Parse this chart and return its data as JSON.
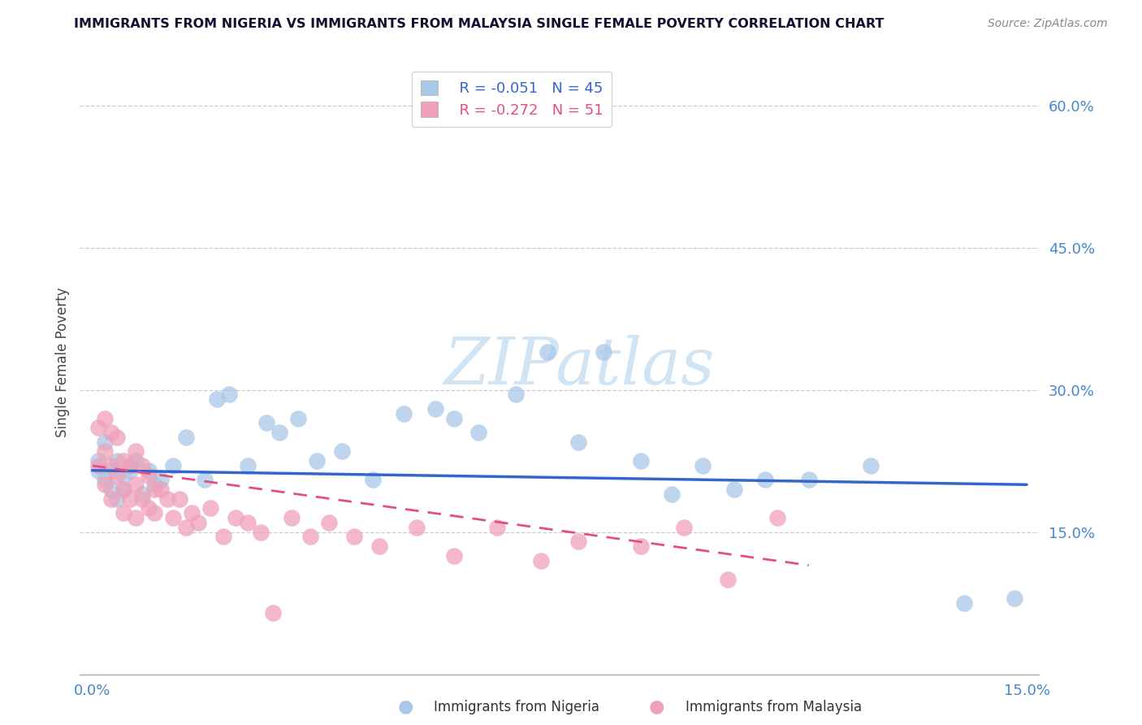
{
  "title": "IMMIGRANTS FROM NIGERIA VS IMMIGRANTS FROM MALAYSIA SINGLE FEMALE POVERTY CORRELATION CHART",
  "source": "Source: ZipAtlas.com",
  "xlabel_nigeria": "Immigrants from Nigeria",
  "xlabel_malaysia": "Immigrants from Malaysia",
  "ylabel": "Single Female Poverty",
  "xlim": [
    -0.002,
    0.152
  ],
  "ylim": [
    0.0,
    0.65
  ],
  "xtick_vals": [
    0.0,
    0.15
  ],
  "xtick_labels": [
    "0.0%",
    "15.0%"
  ],
  "ytick_vals": [
    0.15,
    0.3,
    0.45,
    0.6
  ],
  "ytick_labels": [
    "15.0%",
    "30.0%",
    "45.0%",
    "60.0%"
  ],
  "legend_r_nigeria": "R = -0.051",
  "legend_n_nigeria": "N = 45",
  "legend_r_malaysia": "R = -0.272",
  "legend_n_malaysia": "N = 51",
  "color_nigeria": "#a8c8e8",
  "color_malaysia": "#f0a0b8",
  "line_color_nigeria": "#3366cc",
  "line_color_malaysia": "#e05080",
  "watermark_color": "#d0e4f4",
  "nigeria_x": [
    0.001,
    0.001,
    0.002,
    0.002,
    0.003,
    0.003,
    0.004,
    0.004,
    0.005,
    0.005,
    0.006,
    0.007,
    0.008,
    0.009,
    0.01,
    0.011,
    0.013,
    0.015,
    0.018,
    0.02,
    0.022,
    0.025,
    0.028,
    0.03,
    0.033,
    0.036,
    0.04,
    0.045,
    0.05,
    0.055,
    0.058,
    0.062,
    0.068,
    0.073,
    0.078,
    0.082,
    0.088,
    0.093,
    0.098,
    0.103,
    0.108,
    0.115,
    0.125,
    0.14,
    0.148
  ],
  "nigeria_y": [
    0.225,
    0.215,
    0.245,
    0.205,
    0.215,
    0.195,
    0.225,
    0.185,
    0.21,
    0.195,
    0.215,
    0.225,
    0.19,
    0.215,
    0.2,
    0.205,
    0.22,
    0.25,
    0.205,
    0.29,
    0.295,
    0.22,
    0.265,
    0.255,
    0.27,
    0.225,
    0.235,
    0.205,
    0.275,
    0.28,
    0.27,
    0.255,
    0.295,
    0.34,
    0.245,
    0.34,
    0.225,
    0.19,
    0.22,
    0.195,
    0.205,
    0.205,
    0.22,
    0.075,
    0.08
  ],
  "malaysia_x": [
    0.001,
    0.001,
    0.002,
    0.002,
    0.002,
    0.003,
    0.003,
    0.003,
    0.004,
    0.004,
    0.005,
    0.005,
    0.005,
    0.006,
    0.006,
    0.007,
    0.007,
    0.007,
    0.008,
    0.008,
    0.009,
    0.009,
    0.01,
    0.01,
    0.011,
    0.012,
    0.013,
    0.014,
    0.015,
    0.016,
    0.017,
    0.019,
    0.021,
    0.023,
    0.025,
    0.027,
    0.029,
    0.032,
    0.035,
    0.038,
    0.042,
    0.046,
    0.052,
    0.058,
    0.065,
    0.072,
    0.078,
    0.088,
    0.095,
    0.102,
    0.11
  ],
  "malaysia_y": [
    0.26,
    0.22,
    0.27,
    0.235,
    0.2,
    0.255,
    0.22,
    0.185,
    0.25,
    0.21,
    0.225,
    0.195,
    0.17,
    0.22,
    0.185,
    0.235,
    0.2,
    0.165,
    0.22,
    0.185,
    0.21,
    0.175,
    0.195,
    0.17,
    0.195,
    0.185,
    0.165,
    0.185,
    0.155,
    0.17,
    0.16,
    0.175,
    0.145,
    0.165,
    0.16,
    0.15,
    0.065,
    0.165,
    0.145,
    0.16,
    0.145,
    0.135,
    0.155,
    0.125,
    0.155,
    0.12,
    0.14,
    0.135,
    0.155,
    0.1,
    0.165
  ],
  "ng_line_x0": 0.0,
  "ng_line_x1": 0.15,
  "ng_line_y0": 0.215,
  "ng_line_y1": 0.2,
  "my_line_x0": 0.0,
  "my_line_x1": 0.115,
  "my_line_y0": 0.22,
  "my_line_y1": 0.115
}
